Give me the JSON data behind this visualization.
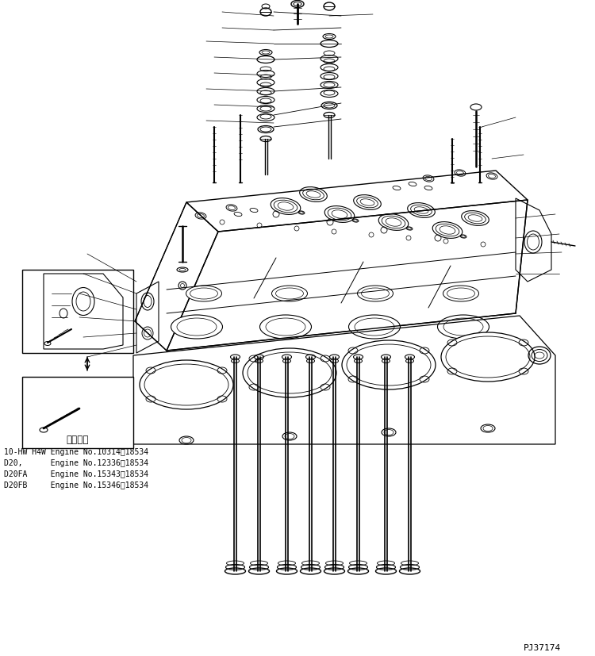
{
  "background_color": "#ffffff",
  "line_color": "#000000",
  "fig_width": 7.5,
  "fig_height": 8.27,
  "dpi": 100,
  "text_lines": [
    "適用号機",
    "10-HW H4W Engine No.10314～18534",
    "D20,      Engine No.12336～18534",
    "D20FA     Engine No.15343～18534",
    "D20FB     Engine No.15346～18534"
  ],
  "part_number": "PJ37174"
}
